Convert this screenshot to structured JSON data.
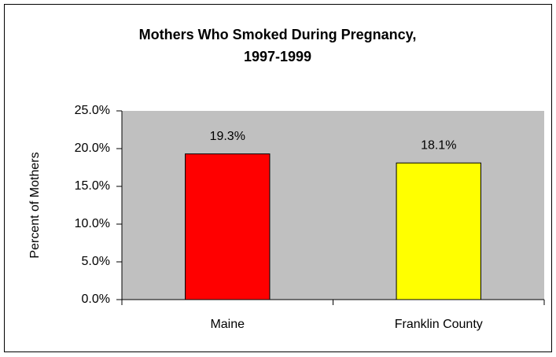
{
  "chart_data": {
    "type": "bar",
    "title": [
      "Mothers Who Smoked During Pregnancy,",
      "1997-1999"
    ],
    "ylabel": "Percent of Mothers",
    "categories": [
      "Maine",
      "Franklin County"
    ],
    "values": [
      19.3,
      18.1
    ],
    "value_labels": [
      "19.3%",
      "18.1%"
    ],
    "colors": [
      "#ff0000",
      "#ffff00"
    ],
    "ylim": [
      0,
      25
    ],
    "yticks": [
      {
        "value": 0,
        "label": "0.0%"
      },
      {
        "value": 5,
        "label": "5.0%"
      },
      {
        "value": 10,
        "label": "10.0%"
      },
      {
        "value": 15,
        "label": "15.0%"
      },
      {
        "value": 20,
        "label": "20.0%"
      },
      {
        "value": 25,
        "label": "25.0%"
      }
    ],
    "grid": false
  }
}
